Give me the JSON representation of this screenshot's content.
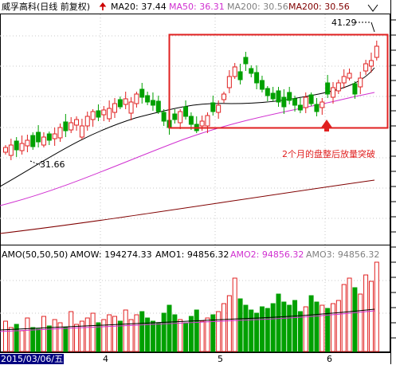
{
  "price_header": {
    "title": "威孚高科(日线 前复权)",
    "ma20": "MA20: 37.44",
    "ma50": "MA50: 36.31",
    "ma200a": "MA200: 30.56",
    "ma200b": "MA200: 30.56"
  },
  "volume_header": {
    "title": "AMO(50,50,50)",
    "amow": "AMOW: 194274.33",
    "amo1": "AMO1: 94856.32",
    "amo2": "AMO2: 94856.32",
    "amo3": "AMO3: 94856.32"
  },
  "annotations": {
    "high_label": "41.29",
    "low_label": "31.66",
    "breakout_note": "2个月的盘整后放量突破"
  },
  "x_axis": {
    "start_date": "2015/03/06/五",
    "month_labels": [
      "4",
      "5",
      "6"
    ]
  },
  "colors": {
    "up": "#e02020",
    "down": "#00a000",
    "ma20": "#000000",
    "ma50": "#d030d0",
    "ma200": "#800000",
    "box": "#e02020",
    "header_red": "#cc0000",
    "header_magenta": "#d030d0",
    "header_gray": "#808080",
    "dashed_grid": "#c8c8c8",
    "date_bg": "#000080"
  },
  "icons": {
    "header_arrow": "red-up-arrow-icon",
    "breakout_arrow": "red-up-arrow-icon"
  }
}
